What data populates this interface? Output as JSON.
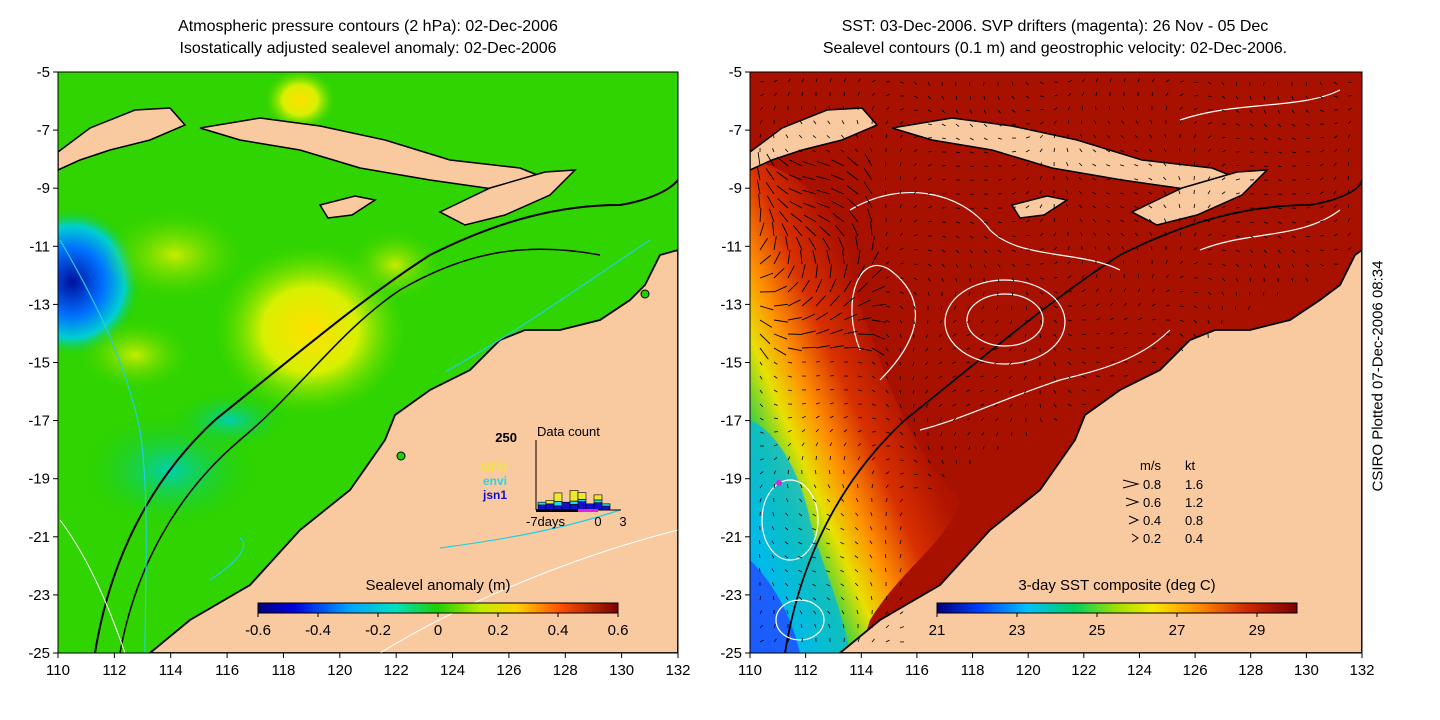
{
  "left_panel": {
    "title_line1": "Atmospheric pressure contours (2 hPa): 02-Dec-2006",
    "title_line2": "Isostatically adjusted sealevel anomaly: 02-Dec-2006",
    "colorbar": {
      "label": "Sealevel anomaly (m)",
      "ticks": [
        "-0.6",
        "-0.4",
        "-0.2",
        "0",
        "0.2",
        "0.4",
        "0.6"
      ]
    },
    "data_count": {
      "title": "Data count",
      "y_max_label": "250",
      "satellites": [
        {
          "name": "GFO",
          "color": "#f0e830"
        },
        {
          "name": "envi",
          "color": "#20d8e8"
        },
        {
          "name": "jsn1",
          "color": "#1010d0"
        }
      ],
      "x_labels": [
        "-7days",
        "0",
        "3"
      ],
      "jsn1": [
        18,
        22,
        15,
        28,
        20,
        30,
        22,
        26,
        14,
        0
      ],
      "envi": [
        10,
        0,
        16,
        0,
        12,
        8,
        0,
        10,
        8,
        0
      ],
      "gfo": [
        0,
        12,
        30,
        0,
        38,
        24,
        0,
        18,
        0,
        0
      ]
    }
  },
  "right_panel": {
    "title_line1": "SST: 03-Dec-2006. SVP drifters (magenta): 26 Nov - 05 Dec",
    "title_line2": "Sealevel contours (0.1 m) and geostrophic velocity: 02-Dec-2006.",
    "colorbar": {
      "label": "3-day SST composite (deg C)",
      "ticks": [
        "21",
        "23",
        "25",
        "27",
        "29"
      ]
    },
    "velocity_legend": {
      "header_ms": "m/s",
      "header_kt": "kt",
      "rows": [
        {
          "ms": "0.8",
          "kt": "1.6"
        },
        {
          "ms": "0.6",
          "kt": "1.2"
        },
        {
          "ms": "0.4",
          "kt": "0.8"
        },
        {
          "ms": "0.2",
          "kt": "0.4"
        }
      ]
    }
  },
  "axes": {
    "x_ticks": [
      "110",
      "112",
      "114",
      "116",
      "118",
      "120",
      "122",
      "124",
      "126",
      "128",
      "130",
      "132"
    ],
    "y_ticks": [
      "-5",
      "-7",
      "-9",
      "-11",
      "-13",
      "-15",
      "-17",
      "-19",
      "-21",
      "-23",
      "-25"
    ],
    "x_range": [
      110,
      132
    ],
    "y_range": [
      -25,
      -5
    ]
  },
  "credit": "CSIRO Plotted 07-Dec-2006 08:34",
  "colors": {
    "land": "#f9c9a0",
    "sealevel_scale": [
      "#00007a",
      "#0000e0",
      "#0070ff",
      "#00c8ff",
      "#00e8a0",
      "#10d000",
      "#40d800",
      "#a8e800",
      "#f0f000",
      "#ffa000",
      "#ff4000",
      "#b80000",
      "#800000"
    ],
    "sst_scale": [
      "#00007a",
      "#0000e0",
      "#0060ff",
      "#00b0ff",
      "#00e0c0",
      "#00d000",
      "#90e000",
      "#f0f000",
      "#ffa000",
      "#e04000",
      "#b01000",
      "#7a0000"
    ]
  }
}
